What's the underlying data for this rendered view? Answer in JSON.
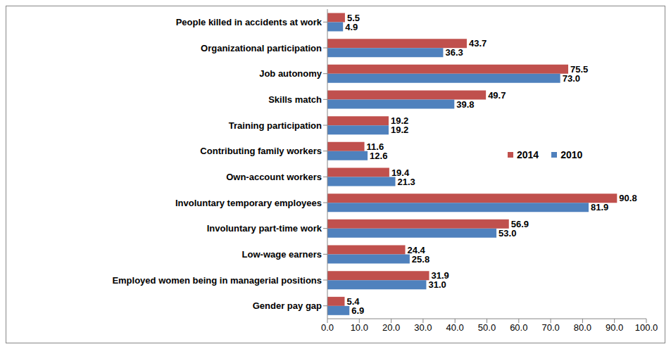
{
  "chart_data": {
    "type": "bar",
    "orientation": "horizontal",
    "categories": [
      "People killed in accidents at work",
      "Organizational participation",
      "Job autonomy",
      "Skills match",
      "Training participation",
      "Contributing family workers",
      "Own-account workers",
      "Involuntary temporary employees",
      "Involuntary part-time work",
      "Low-wage earners",
      "Employed women being in managerial positions",
      "Gender pay gap"
    ],
    "series": [
      {
        "name": "2014",
        "color": "#C0504D",
        "values": [
          5.5,
          43.7,
          75.5,
          49.7,
          19.2,
          11.6,
          19.4,
          90.8,
          56.9,
          24.4,
          31.9,
          5.4
        ],
        "value_labels": [
          "5.5",
          "43.7",
          "75.5",
          "49.7",
          "19.2",
          "11.6",
          "19.4",
          "90.8",
          "56.9",
          "24.4",
          "31.9",
          "5.4"
        ]
      },
      {
        "name": "2010",
        "color": "#4F81BD",
        "values": [
          4.9,
          36.3,
          73.0,
          39.8,
          19.2,
          12.6,
          21.3,
          81.9,
          53.0,
          25.8,
          31.0,
          6.9
        ],
        "value_labels": [
          "4.9",
          "36.3",
          "73.0",
          "39.8",
          "19.2",
          "12.6",
          "21.3",
          "81.9",
          "53.0",
          "25.8",
          "31.0",
          "6.9"
        ]
      }
    ],
    "xlim": [
      0,
      100
    ],
    "xticks": [
      {
        "value": 0,
        "label": "0.0"
      },
      {
        "value": 10,
        "label": "10.0"
      },
      {
        "value": 20,
        "label": "20.0"
      },
      {
        "value": 30,
        "label": "30.0"
      },
      {
        "value": 40,
        "label": "40.0"
      },
      {
        "value": 50,
        "label": "50.0"
      },
      {
        "value": 60,
        "label": "60.0"
      },
      {
        "value": 70,
        "label": "70.0"
      },
      {
        "value": 80,
        "label": "80.0"
      },
      {
        "value": 90,
        "label": "90.0"
      },
      {
        "value": 100,
        "label": "100.0"
      }
    ],
    "data_labels": true,
    "grid": false,
    "legend": "right"
  }
}
